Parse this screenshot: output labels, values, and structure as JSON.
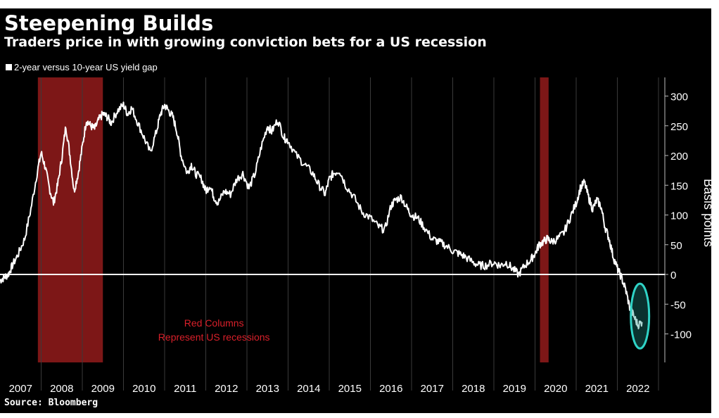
{
  "title": "Steepening Builds",
  "subtitle": "Traders price in with growing conviction bets for a US recession",
  "source": "Source: Bloomberg",
  "annotation": [
    "Red Columns",
    "Represent US recessions"
  ],
  "colors": {
    "background": "#000000",
    "line": "#ffffff",
    "recession": "#8b1a1a",
    "annotation": "#d9202a",
    "highlight": "#2fd3c6"
  },
  "chart_data": {
    "type": "line",
    "title": "Steepening Builds",
    "subtitle": "Traders price in with growing conviction bets for a US recession",
    "ylabel": "Basis points",
    "xlabel": "",
    "ylim": [
      -150,
      330
    ],
    "xlim": [
      2007.0,
      2022.75
    ],
    "yticks": [
      300,
      250,
      200,
      150,
      100,
      50,
      0,
      -50,
      -100
    ],
    "xticks": [
      "2007",
      "2008",
      "2009",
      "2010",
      "2011",
      "2012",
      "2013",
      "2014",
      "2015",
      "2016",
      "2017",
      "2018",
      "2019",
      "2020",
      "2021",
      "2022"
    ],
    "grid": "vertical",
    "legend_position": "top-left",
    "zero_line": true,
    "recessions": [
      [
        2007.92,
        2009.5
      ],
      [
        2020.12,
        2020.33
      ]
    ],
    "highlight_ellipse": {
      "x": 2022.55,
      "y": -70,
      "label": ""
    },
    "series": [
      {
        "name": "2-year versus 10-year US yield gap",
        "x": [
          2007.0,
          2007.1,
          2007.2,
          2007.3,
          2007.45,
          2007.6,
          2007.75,
          2007.9,
          2008.0,
          2008.1,
          2008.2,
          2008.3,
          2008.4,
          2008.5,
          2008.6,
          2008.7,
          2008.8,
          2008.9,
          2009.0,
          2009.1,
          2009.2,
          2009.3,
          2009.4,
          2009.5,
          2009.6,
          2009.7,
          2009.85,
          2010.0,
          2010.1,
          2010.2,
          2010.35,
          2010.5,
          2010.65,
          2010.8,
          2010.9,
          2011.0,
          2011.1,
          2011.2,
          2011.3,
          2011.4,
          2011.55,
          2011.65,
          2011.75,
          2011.9,
          2012.0,
          2012.1,
          2012.2,
          2012.3,
          2012.45,
          2012.6,
          2012.75,
          2012.9,
          2013.05,
          2013.2,
          2013.35,
          2013.5,
          2013.6,
          2013.75,
          2013.9,
          2014.0,
          2014.2,
          2014.4,
          2014.6,
          2014.75,
          2014.9,
          2015.0,
          2015.1,
          2015.25,
          2015.4,
          2015.6,
          2015.8,
          2016.0,
          2016.2,
          2016.35,
          2016.5,
          2016.6,
          2016.75,
          2016.9,
          2017.0,
          2017.15,
          2017.3,
          2017.5,
          2017.65,
          2017.8,
          2018.0,
          2018.15,
          2018.3,
          2018.5,
          2018.65,
          2018.8,
          2019.0,
          2019.15,
          2019.3,
          2019.45,
          2019.6,
          2019.75,
          2019.9,
          2020.0,
          2020.1,
          2020.2,
          2020.3,
          2020.4,
          2020.55,
          2020.7,
          2020.85,
          2021.0,
          2021.1,
          2021.2,
          2021.3,
          2021.4,
          2021.5,
          2021.6,
          2021.7,
          2021.8,
          2021.9,
          2022.0,
          2022.1,
          2022.2,
          2022.3,
          2022.4,
          2022.5,
          2022.6
        ],
        "y": [
          -10,
          -5,
          0,
          15,
          35,
          60,
          110,
          170,
          205,
          180,
          145,
          120,
          150,
          195,
          250,
          200,
          140,
          170,
          215,
          260,
          250,
          245,
          260,
          270,
          265,
          255,
          275,
          285,
          270,
          280,
          255,
          230,
          205,
          240,
          270,
          285,
          275,
          265,
          240,
          200,
          170,
          185,
          170,
          160,
          140,
          150,
          130,
          120,
          140,
          135,
          160,
          170,
          145,
          170,
          215,
          250,
          240,
          260,
          230,
          225,
          200,
          185,
          170,
          150,
          135,
          160,
          170,
          175,
          150,
          130,
          105,
          95,
          80,
          75,
          115,
          125,
          130,
          110,
          100,
          95,
          80,
          60,
          55,
          50,
          40,
          35,
          30,
          20,
          15,
          15,
          20,
          15,
          20,
          10,
          0,
          15,
          25,
          35,
          50,
          55,
          60,
          55,
          60,
          70,
          95,
          120,
          145,
          155,
          130,
          110,
          125,
          115,
          80,
          60,
          30,
          10,
          -5,
          -25,
          -55,
          -70,
          -85,
          -80
        ]
      }
    ]
  }
}
